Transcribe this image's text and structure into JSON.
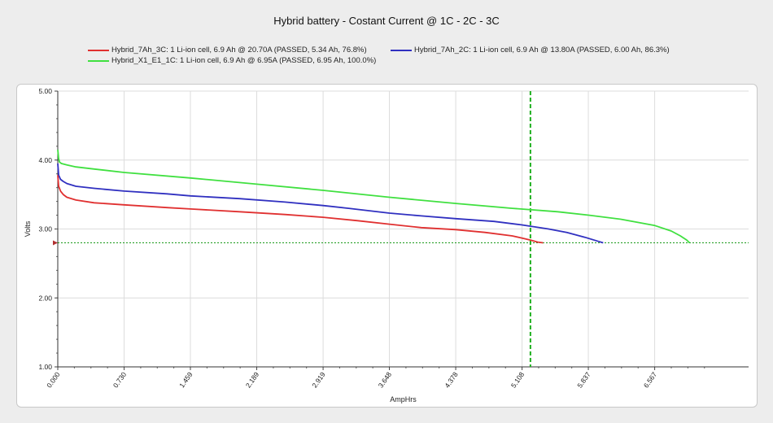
{
  "chart_data": {
    "type": "line",
    "title": "Hybrid battery - Costant Current @ 1C - 2C - 3C",
    "xlabel": "AmpHrs",
    "ylabel": "Volts",
    "xlim": [
      0,
      7.6
    ],
    "ylim": [
      1.0,
      5.0
    ],
    "x_ticks": [
      "0.000",
      "0.730",
      "1.459",
      "2.189",
      "2.919",
      "3.648",
      "4.378",
      "5.108",
      "5.837",
      "6.567"
    ],
    "y_ticks": [
      "5.00",
      "4.00",
      "3.00",
      "2.00",
      "1.00"
    ],
    "grid": true,
    "legend_position": "top",
    "cutoff_voltage": 2.8,
    "marker_x": 5.2,
    "series": [
      {
        "name": "Hybrid_7Ah_3C: 1 Li-ion cell, 6.9 Ah @ 20.70A (PASSED, 5.34 Ah, 76.8%)",
        "color": "#e03030",
        "x": [
          0,
          0.01,
          0.03,
          0.06,
          0.1,
          0.2,
          0.4,
          0.73,
          1.2,
          1.46,
          2.0,
          2.5,
          2.92,
          3.3,
          3.65,
          4.0,
          4.38,
          4.7,
          5.0,
          5.1,
          5.2,
          5.28,
          5.34
        ],
        "values": [
          3.78,
          3.62,
          3.55,
          3.5,
          3.46,
          3.42,
          3.38,
          3.35,
          3.31,
          3.29,
          3.25,
          3.21,
          3.17,
          3.12,
          3.07,
          3.02,
          2.99,
          2.95,
          2.9,
          2.87,
          2.84,
          2.81,
          2.8
        ]
      },
      {
        "name": "Hybrid_7Ah_2C: 1 Li-ion cell, 6.9 Ah @ 13.80A (PASSED, 6.00 Ah, 86.3%)",
        "color": "#3030c0",
        "x": [
          0,
          0.01,
          0.03,
          0.06,
          0.1,
          0.2,
          0.4,
          0.73,
          1.2,
          1.46,
          2.0,
          2.5,
          2.92,
          3.2,
          3.65,
          4.0,
          4.38,
          4.8,
          5.1,
          5.4,
          5.6,
          5.8,
          5.95,
          6.0
        ],
        "values": [
          3.95,
          3.78,
          3.72,
          3.69,
          3.66,
          3.62,
          3.59,
          3.55,
          3.51,
          3.48,
          3.44,
          3.39,
          3.34,
          3.3,
          3.23,
          3.19,
          3.15,
          3.11,
          3.06,
          3.0,
          2.95,
          2.88,
          2.82,
          2.8
        ]
      },
      {
        "name": "Hybrid_X1_E1_1C: 1 Li-ion cell, 6.9 Ah @ 6.95A (PASSED, 6.95 Ah, 100.0%)",
        "color": "#40e040",
        "x": [
          0,
          0.01,
          0.02,
          0.04,
          0.1,
          0.2,
          0.4,
          0.73,
          1.46,
          2.19,
          2.92,
          3.65,
          4.38,
          5.0,
          5.5,
          5.84,
          6.2,
          6.57,
          6.75,
          6.85,
          6.92,
          6.95
        ],
        "values": [
          4.15,
          4.02,
          3.97,
          3.95,
          3.93,
          3.9,
          3.87,
          3.82,
          3.74,
          3.65,
          3.56,
          3.46,
          3.37,
          3.3,
          3.25,
          3.2,
          3.14,
          3.05,
          2.97,
          2.9,
          2.84,
          2.8
        ]
      }
    ]
  }
}
